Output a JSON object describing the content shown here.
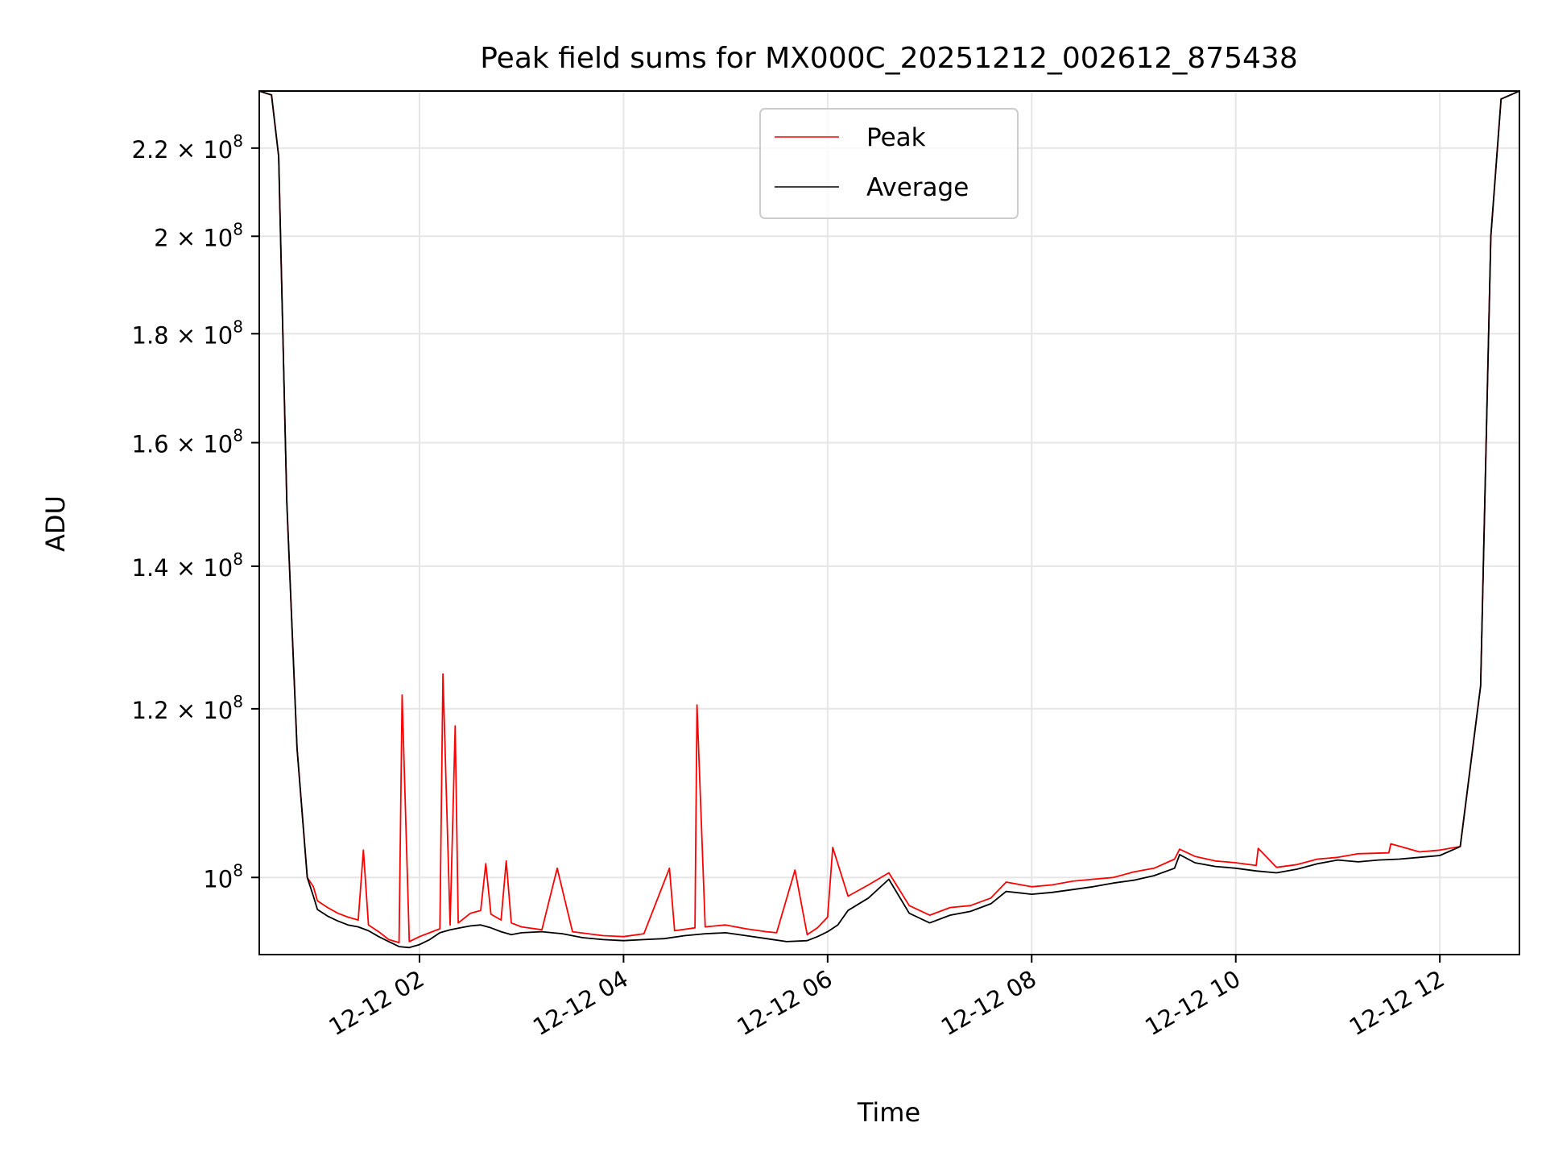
{
  "chart_data": {
    "type": "line",
    "title": "Peak field sums for MX000C_20251212_002612_875438",
    "xlabel": "Time",
    "ylabel": "ADU",
    "xlim_hours": [
      0.43,
      12.78
    ],
    "ylim": [
      92000000,
      234000000
    ],
    "yscale": "log",
    "grid": true,
    "legend_position": "top-center",
    "x_ticks": [
      {
        "hour": 2,
        "label": "12-12 02"
      },
      {
        "hour": 4,
        "label": "12-12 04"
      },
      {
        "hour": 6,
        "label": "12-12 06"
      },
      {
        "hour": 8,
        "label": "12-12 08"
      },
      {
        "hour": 10,
        "label": "12-12 10"
      },
      {
        "hour": 12,
        "label": "12-12 12"
      }
    ],
    "y_ticks": [
      {
        "value": 100000000,
        "mantissa": "",
        "exponent": "8"
      },
      {
        "value": 120000000,
        "mantissa": "1.2",
        "exponent": "8"
      },
      {
        "value": 140000000,
        "mantissa": "1.4",
        "exponent": "8"
      },
      {
        "value": 160000000,
        "mantissa": "1.6",
        "exponent": "8"
      },
      {
        "value": 180000000,
        "mantissa": "1.8",
        "exponent": "8"
      },
      {
        "value": 200000000,
        "mantissa": "2",
        "exponent": "8"
      },
      {
        "value": 220000000,
        "mantissa": "2.2",
        "exponent": "8"
      }
    ],
    "series": [
      {
        "name": "Peak",
        "color": "#ff0000",
        "x_hours": [
          0.43,
          0.55,
          0.62,
          0.7,
          0.8,
          0.9,
          0.96,
          1.0,
          1.1,
          1.2,
          1.3,
          1.4,
          1.45,
          1.5,
          1.6,
          1.7,
          1.8,
          1.83,
          1.9,
          2.0,
          2.1,
          2.2,
          2.23,
          2.3,
          2.35,
          2.38,
          2.5,
          2.6,
          2.65,
          2.7,
          2.8,
          2.85,
          2.9,
          3.0,
          3.2,
          3.35,
          3.5,
          3.8,
          4.0,
          4.2,
          4.45,
          4.5,
          4.7,
          4.72,
          4.8,
          5.0,
          5.2,
          5.4,
          5.5,
          5.68,
          5.8,
          5.9,
          6.0,
          6.05,
          6.2,
          6.4,
          6.6,
          6.8,
          7.0,
          7.2,
          7.4,
          7.6,
          7.75,
          8.0,
          8.2,
          8.4,
          8.6,
          8.8,
          9.0,
          9.2,
          9.4,
          9.45,
          9.6,
          9.8,
          10.0,
          10.2,
          10.22,
          10.4,
          10.6,
          10.8,
          11.0,
          11.2,
          11.5,
          11.52,
          11.8,
          12.0,
          12.2,
          12.4,
          12.5,
          12.6,
          12.78
        ],
        "values": [
          234000000,
          233000000,
          218000000,
          150000000,
          115000000,
          100000000,
          99000000,
          97500000,
          96800000,
          96200000,
          95800000,
          95500000,
          103000000,
          95000000,
          94300000,
          93500000,
          93200000,
          121800000,
          93300000,
          93800000,
          94200000,
          94600000,
          124600000,
          95000000,
          117800000,
          95200000,
          96200000,
          96500000,
          101500000,
          96100000,
          95500000,
          101800000,
          95200000,
          94800000,
          94500000,
          101000000,
          94300000,
          93900000,
          93800000,
          94100000,
          101000000,
          94400000,
          94700000,
          120500000,
          94800000,
          95000000,
          94600000,
          94300000,
          94200000,
          100800000,
          94000000,
          94700000,
          95800000,
          103300000,
          98000000,
          99200000,
          100500000,
          97000000,
          96000000,
          96800000,
          97000000,
          97800000,
          99500000,
          99000000,
          99200000,
          99600000,
          99800000,
          100000000,
          100600000,
          101000000,
          102000000,
          103100000,
          102300000,
          101800000,
          101600000,
          101300000,
          103200000,
          101100000,
          101400000,
          102000000,
          102200000,
          102600000,
          102700000,
          103700000,
          102800000,
          103000000,
          103400000,
          123000000,
          200000000,
          232000000,
          234000000
        ]
      },
      {
        "name": "Average",
        "color": "#000000",
        "x_hours": [
          0.43,
          0.55,
          0.62,
          0.7,
          0.8,
          0.9,
          0.96,
          1.0,
          1.1,
          1.2,
          1.3,
          1.4,
          1.5,
          1.6,
          1.7,
          1.8,
          1.9,
          2.0,
          2.1,
          2.2,
          2.3,
          2.4,
          2.5,
          2.6,
          2.7,
          2.8,
          2.9,
          3.0,
          3.2,
          3.4,
          3.6,
          3.8,
          4.0,
          4.2,
          4.4,
          4.6,
          4.8,
          5.0,
          5.2,
          5.4,
          5.6,
          5.8,
          5.9,
          6.0,
          6.1,
          6.2,
          6.4,
          6.6,
          6.8,
          7.0,
          7.2,
          7.4,
          7.6,
          7.75,
          8.0,
          8.2,
          8.4,
          8.6,
          8.8,
          9.0,
          9.2,
          9.4,
          9.45,
          9.6,
          9.8,
          10.0,
          10.2,
          10.4,
          10.6,
          10.8,
          11.0,
          11.2,
          11.4,
          11.6,
          11.8,
          12.0,
          12.2,
          12.4,
          12.5,
          12.6,
          12.78
        ],
        "values": [
          234000000,
          233000000,
          218000000,
          150000000,
          115000000,
          100000000,
          98000000,
          96600000,
          95900000,
          95400000,
          95000000,
          94800000,
          94400000,
          93800000,
          93300000,
          92800000,
          92700000,
          93000000,
          93500000,
          94200000,
          94500000,
          94700000,
          94900000,
          95000000,
          94700000,
          94300000,
          94000000,
          94200000,
          94300000,
          94100000,
          93700000,
          93500000,
          93400000,
          93500000,
          93600000,
          93900000,
          94100000,
          94200000,
          93900000,
          93600000,
          93300000,
          93400000,
          93800000,
          94300000,
          95000000,
          96500000,
          97800000,
          99800000,
          96200000,
          95200000,
          96000000,
          96400000,
          97200000,
          98500000,
          98200000,
          98400000,
          98700000,
          99000000,
          99400000,
          99700000,
          100200000,
          101000000,
          102500000,
          101600000,
          101200000,
          101000000,
          100700000,
          100500000,
          100900000,
          101500000,
          101900000,
          101700000,
          101900000,
          102000000,
          102200000,
          102400000,
          103400000,
          123000000,
          200000000,
          232000000,
          234000000
        ]
      }
    ]
  }
}
